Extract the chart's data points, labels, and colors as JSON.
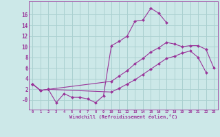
{
  "xlabel": "Windchill (Refroidissement éolien,°C)",
  "background_color": "#cce8e8",
  "grid_color": "#aad0d0",
  "line_color": "#993399",
  "spine_color": "#993399",
  "x_ticks": [
    0,
    1,
    2,
    3,
    4,
    5,
    6,
    7,
    8,
    9,
    10,
    11,
    12,
    13,
    14,
    15,
    16,
    17,
    18,
    19,
    20,
    21,
    22,
    23
  ],
  "y_ticks": [
    0,
    2,
    4,
    6,
    8,
    10,
    12,
    14,
    16
  ],
  "ylim": [
    -1.8,
    18.5
  ],
  "xlim": [
    -0.5,
    23.5
  ],
  "line1_y": [
    3.0,
    1.8,
    2.0,
    -0.5,
    1.2,
    0.5,
    0.5,
    0.2,
    -0.5,
    0.8,
    10.2,
    11.0,
    12.0,
    14.8,
    15.0,
    17.2,
    16.3,
    14.5,
    null,
    null,
    null,
    null,
    null,
    null
  ],
  "line2_y": [
    3.0,
    1.8,
    2.0,
    null,
    null,
    null,
    null,
    null,
    null,
    null,
    3.5,
    4.5,
    5.5,
    6.8,
    7.8,
    9.0,
    9.8,
    10.8,
    10.5,
    10.0,
    10.2,
    10.2,
    9.5,
    6.0
  ],
  "line3_y": [
    3.0,
    1.8,
    2.0,
    null,
    null,
    null,
    null,
    null,
    null,
    null,
    1.5,
    2.2,
    3.0,
    3.8,
    4.8,
    5.8,
    6.8,
    7.8,
    8.2,
    8.8,
    9.2,
    8.0,
    5.2,
    null
  ]
}
